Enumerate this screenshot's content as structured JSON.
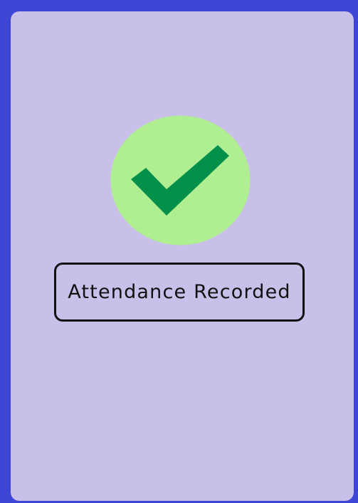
{
  "status": {
    "message": "Attendance Recorded",
    "icon": "checkmark-icon"
  },
  "colors": {
    "frame": "#3f45d4",
    "card": "#c8c0e8",
    "icon_circle": "#b0ee92",
    "icon_check": "#00904a",
    "text": "#111111"
  }
}
